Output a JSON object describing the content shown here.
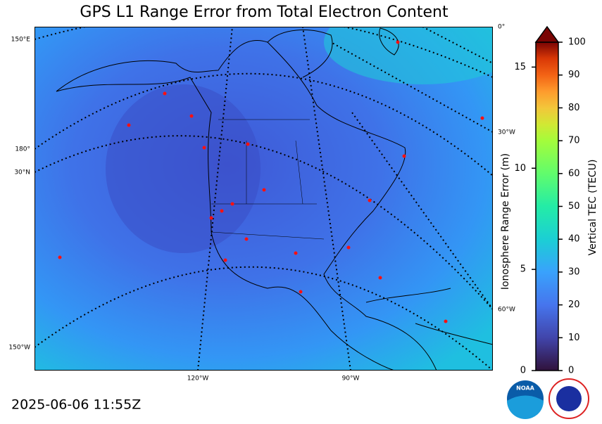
{
  "title": "GPS L1 Range Error from Total Electron Content",
  "timestamp": "2025-06-06 11:55Z",
  "graticule_labels": {
    "left": [
      "150°E",
      "180°",
      "30°N",
      "150°W"
    ],
    "right": [
      "0°",
      "30°W",
      "60°W"
    ],
    "bottom": [
      "120°W",
      "90°W"
    ]
  },
  "colorbar": {
    "label": "Vertical TEC (TECU)",
    "lim": [
      0,
      100
    ],
    "ticks": [
      0,
      10,
      20,
      30,
      40,
      50,
      60,
      70,
      80,
      90,
      100
    ],
    "range_label": "Ionosphere Range Error (m)",
    "range_lim": [
      0,
      16.23
    ],
    "range_ticks": [
      0,
      5,
      10,
      15
    ]
  },
  "logo": "NOAA"
}
